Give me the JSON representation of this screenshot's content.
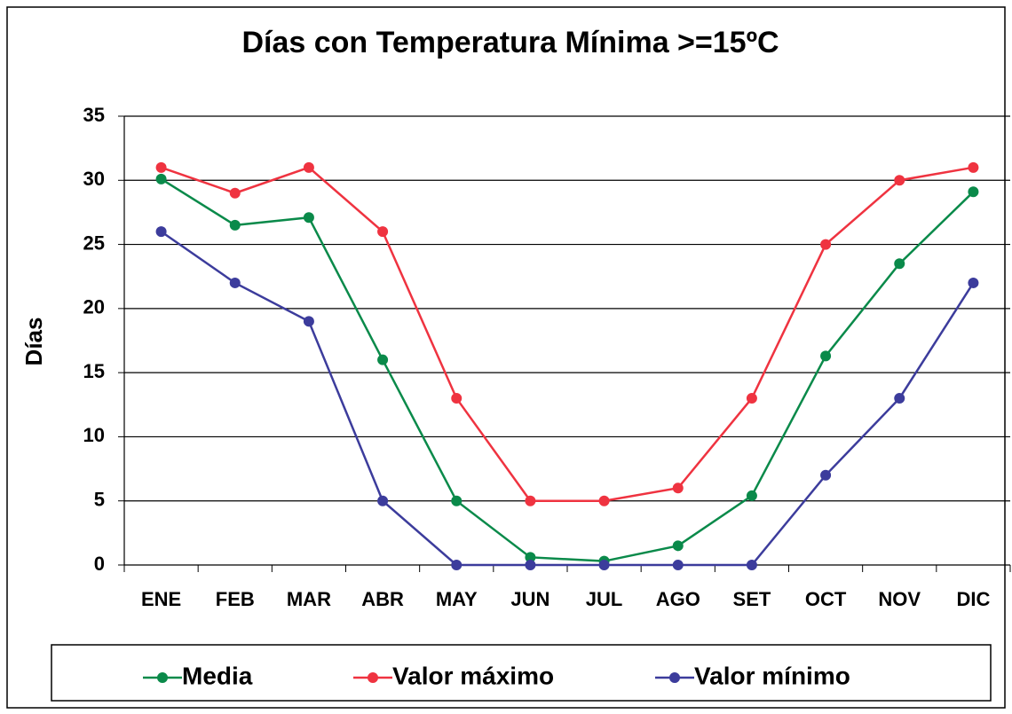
{
  "chart_data": {
    "type": "line",
    "title": "Días con Temperatura Mínima >=15ºC",
    "y_label": "Días",
    "categories": [
      "ENE",
      "FEB",
      "MAR",
      "ABR",
      "MAY",
      "JUN",
      "JUL",
      "AGO",
      "SET",
      "OCT",
      "NOV",
      "DIC"
    ],
    "series": [
      {
        "name": "Media",
        "color": "#0a8a4a",
        "values": [
          30.1,
          26.5,
          27.1,
          16,
          5,
          0.6,
          0.3,
          1.5,
          5.4,
          16.3,
          23.5,
          29.1
        ]
      },
      {
        "name": "Valor máximo",
        "color": "#ef3340",
        "values": [
          31,
          29,
          31,
          26,
          13,
          5,
          5,
          6,
          13,
          25,
          30,
          31
        ]
      },
      {
        "name": "Valor mínimo",
        "color": "#3c3c9c",
        "values": [
          26,
          22,
          19,
          5,
          0,
          0,
          0,
          0,
          0,
          7,
          13,
          22
        ]
      }
    ],
    "ylim": [
      0,
      35
    ],
    "yticks": [
      0,
      5,
      10,
      15,
      20,
      25,
      30,
      35
    ],
    "grid": true,
    "legend": "bottom"
  }
}
